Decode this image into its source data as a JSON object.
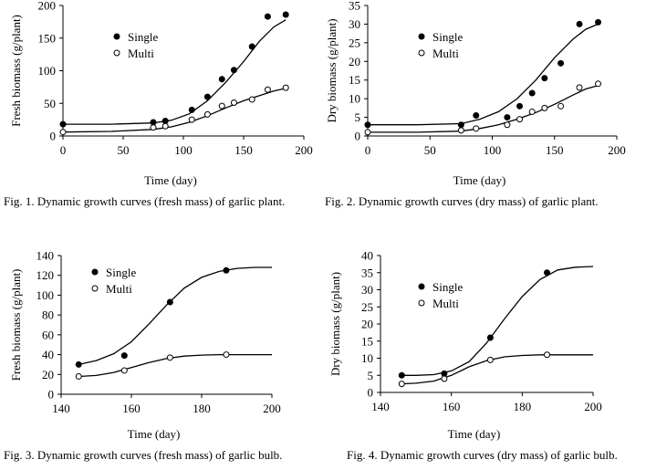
{
  "captions": [
    "Fig. 1. Dynamic growth curves (fresh mass) of garlic plant.",
    "Fig. 2. Dynamic growth curves (dry mass) of garlic plant.",
    "Fig. 3. Dynamic growth curves (fresh mass) of garlic bulb.",
    "Fig. 4. Dynamic growth curves (dry mass) of garlic bulb."
  ],
  "chart_data": [
    {
      "type": "scatter",
      "title": "",
      "xlabel": "Time (day)",
      "ylabel": "Fresh biomass (g/plant)",
      "xlim": [
        0,
        200
      ],
      "ylim": [
        0,
        200
      ],
      "xticks": [
        0,
        50,
        100,
        150,
        200
      ],
      "yticks": [
        0,
        50,
        100,
        150,
        200
      ],
      "grid": false,
      "legend": "top-left",
      "series": [
        {
          "name": "Single",
          "marker": "filled",
          "points": [
            [
              0,
              18
            ],
            [
              75,
              21
            ],
            [
              85,
              23
            ],
            [
              107,
              40
            ],
            [
              120,
              60
            ],
            [
              132,
              87
            ],
            [
              142,
              101
            ],
            [
              157,
              137
            ],
            [
              170,
              183
            ],
            [
              185,
              186
            ]
          ],
          "fit": [
            [
              0,
              18
            ],
            [
              40,
              18
            ],
            [
              75,
              20
            ],
            [
              90,
              24
            ],
            [
              105,
              34
            ],
            [
              120,
              54
            ],
            [
              135,
              82
            ],
            [
              150,
              114
            ],
            [
              163,
              145
            ],
            [
              175,
              167
            ],
            [
              185,
              178
            ]
          ]
        },
        {
          "name": "Multi",
          "marker": "open",
          "points": [
            [
              0,
              6
            ],
            [
              75,
              13
            ],
            [
              85,
              15
            ],
            [
              107,
              25
            ],
            [
              120,
              33
            ],
            [
              132,
              46
            ],
            [
              142,
              51
            ],
            [
              157,
              56
            ],
            [
              170,
              71
            ],
            [
              185,
              74
            ]
          ],
          "fit": [
            [
              0,
              6
            ],
            [
              40,
              7
            ],
            [
              75,
              10
            ],
            [
              90,
              14
            ],
            [
              105,
              21
            ],
            [
              120,
              31
            ],
            [
              135,
              43
            ],
            [
              150,
              54
            ],
            [
              165,
              63
            ],
            [
              175,
              69
            ],
            [
              185,
              73
            ]
          ]
        }
      ]
    },
    {
      "type": "scatter",
      "title": "",
      "xlabel": "Time (day)",
      "ylabel": "Dry biomass (g/plant)",
      "xlim": [
        0,
        200
      ],
      "ylim": [
        0,
        35
      ],
      "xticks": [
        0,
        50,
        100,
        150,
        200
      ],
      "yticks": [
        0,
        5,
        10,
        15,
        20,
        25,
        30,
        35
      ],
      "grid": false,
      "legend": "top-left",
      "series": [
        {
          "name": "Single",
          "marker": "filled",
          "points": [
            [
              0,
              3
            ],
            [
              75,
              3
            ],
            [
              87,
              5.5
            ],
            [
              112,
              5
            ],
            [
              122,
              8
            ],
            [
              132,
              11.5
            ],
            [
              142,
              15.5
            ],
            [
              155,
              19.5
            ],
            [
              170,
              30
            ],
            [
              185,
              30.5
            ]
          ],
          "fit": [
            [
              0,
              3
            ],
            [
              40,
              3
            ],
            [
              75,
              3.3
            ],
            [
              90,
              4.5
            ],
            [
              105,
              6.5
            ],
            [
              120,
              10
            ],
            [
              135,
              15
            ],
            [
              150,
              21
            ],
            [
              165,
              26
            ],
            [
              175,
              28.6
            ],
            [
              185,
              30
            ]
          ]
        },
        {
          "name": "Multi",
          "marker": "open",
          "points": [
            [
              0,
              1
            ],
            [
              75,
              1.5
            ],
            [
              87,
              2
            ],
            [
              112,
              3
            ],
            [
              122,
              4.5
            ],
            [
              132,
              6.5
            ],
            [
              142,
              7.5
            ],
            [
              155,
              8
            ],
            [
              170,
              13
            ],
            [
              185,
              14
            ]
          ],
          "fit": [
            [
              0,
              1
            ],
            [
              40,
              1
            ],
            [
              75,
              1.3
            ],
            [
              90,
              2
            ],
            [
              105,
              3
            ],
            [
              120,
              4.5
            ],
            [
              135,
              6.3
            ],
            [
              150,
              8.5
            ],
            [
              165,
              11
            ],
            [
              175,
              12.6
            ],
            [
              185,
              13.5
            ]
          ]
        }
      ]
    },
    {
      "type": "scatter",
      "title": "",
      "xlabel": "Time (day)",
      "ylabel": "Fresh biomass (g/plant)",
      "xlim": [
        140,
        200
      ],
      "ylim": [
        0,
        140
      ],
      "xticks": [
        140,
        160,
        180,
        200
      ],
      "yticks": [
        0,
        20,
        40,
        60,
        80,
        100,
        120,
        140
      ],
      "grid": false,
      "legend": "top-left",
      "series": [
        {
          "name": "Single",
          "marker": "filled",
          "points": [
            [
              145,
              30
            ],
            [
              158,
              39
            ],
            [
              171,
              93
            ],
            [
              187,
              125
            ]
          ],
          "fit": [
            [
              145,
              30
            ],
            [
              150,
              34
            ],
            [
              155,
              41
            ],
            [
              160,
              53
            ],
            [
              165,
              71
            ],
            [
              170,
              90
            ],
            [
              175,
              107
            ],
            [
              180,
              118
            ],
            [
              185,
              124
            ],
            [
              190,
              127
            ],
            [
              195,
              128
            ],
            [
              200,
              128
            ]
          ]
        },
        {
          "name": "Multi",
          "marker": "open",
          "points": [
            [
              145,
              18
            ],
            [
              158,
              24
            ],
            [
              171,
              37
            ],
            [
              187,
              40
            ]
          ],
          "fit": [
            [
              145,
              18
            ],
            [
              150,
              19
            ],
            [
              155,
              22
            ],
            [
              160,
              27
            ],
            [
              165,
              32
            ],
            [
              170,
              36
            ],
            [
              175,
              38.5
            ],
            [
              180,
              39.5
            ],
            [
              185,
              40
            ],
            [
              200,
              40
            ]
          ]
        }
      ]
    },
    {
      "type": "scatter",
      "title": "",
      "xlabel": "Time (day)",
      "ylabel": "Dry biomass (g/plant)",
      "xlim": [
        140,
        200
      ],
      "ylim": [
        0,
        40
      ],
      "xticks": [
        140,
        160,
        180,
        200
      ],
      "yticks": [
        0,
        5,
        10,
        15,
        20,
        25,
        30,
        35,
        40
      ],
      "grid": false,
      "legend": "top-left",
      "series": [
        {
          "name": "Single",
          "marker": "filled",
          "points": [
            [
              146,
              5
            ],
            [
              158,
              5.5
            ],
            [
              171,
              16
            ],
            [
              187,
              35
            ]
          ],
          "fit": [
            [
              146,
              5
            ],
            [
              150,
              5
            ],
            [
              155,
              5.2
            ],
            [
              160,
              6.3
            ],
            [
              165,
              9
            ],
            [
              170,
              14.5
            ],
            [
              175,
              21.5
            ],
            [
              180,
              28
            ],
            [
              185,
              33
            ],
            [
              190,
              35.8
            ],
            [
              195,
              36.6
            ],
            [
              200,
              36.8
            ]
          ]
        },
        {
          "name": "Multi",
          "marker": "open",
          "points": [
            [
              146,
              2.5
            ],
            [
              158,
              4
            ],
            [
              171,
              9.5
            ],
            [
              187,
              11
            ]
          ],
          "fit": [
            [
              146,
              2.5
            ],
            [
              150,
              2.7
            ],
            [
              155,
              3.3
            ],
            [
              160,
              5
            ],
            [
              165,
              7.5
            ],
            [
              170,
              9.3
            ],
            [
              175,
              10.4
            ],
            [
              180,
              10.8
            ],
            [
              185,
              11
            ],
            [
              200,
              11
            ]
          ]
        }
      ]
    }
  ]
}
